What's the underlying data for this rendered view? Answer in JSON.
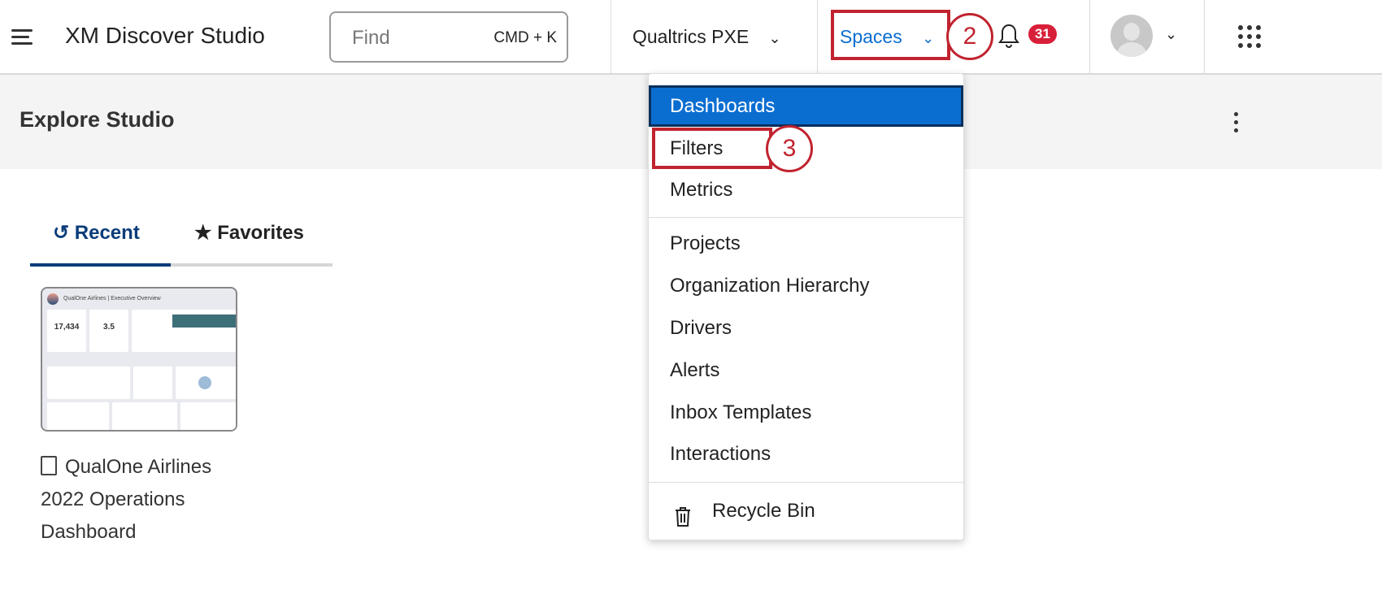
{
  "header": {
    "app_title": "XM Discover Studio",
    "search": {
      "placeholder": "Find",
      "shortcut": "CMD + K"
    },
    "account": "Qualtrics PXE",
    "spaces": "Spaces",
    "notifications_count": "31",
    "callouts": [
      "2",
      "3"
    ],
    "highlight_color": "#c0232f",
    "accent_color": "#0a6ed1"
  },
  "page": {
    "title": "Explore Studio"
  },
  "tabs": [
    {
      "label": "Recent",
      "icon": "history-icon",
      "active": true
    },
    {
      "label": "Favorites",
      "icon": "star-icon",
      "active": false
    }
  ],
  "recent": [
    {
      "title": "QualOne Airlines 2022 Operations Dashboard",
      "icon": "book-icon",
      "thumbnail": {
        "header": "QualOne Airlines | Executive Overview",
        "kpis": [
          "17,434",
          "3.5"
        ]
      }
    }
  ],
  "menu": {
    "items": [
      {
        "label": "Dashboards",
        "active": true
      },
      {
        "label": "Filters"
      },
      {
        "label": "Metrics"
      },
      {
        "label": "Projects"
      },
      {
        "label": "Organization Hierarchy"
      },
      {
        "label": "Drivers"
      },
      {
        "label": "Alerts"
      },
      {
        "label": "Inbox Templates"
      },
      {
        "label": "Interactions"
      },
      {
        "label": "Recycle Bin",
        "icon": "trash-icon"
      }
    ]
  }
}
